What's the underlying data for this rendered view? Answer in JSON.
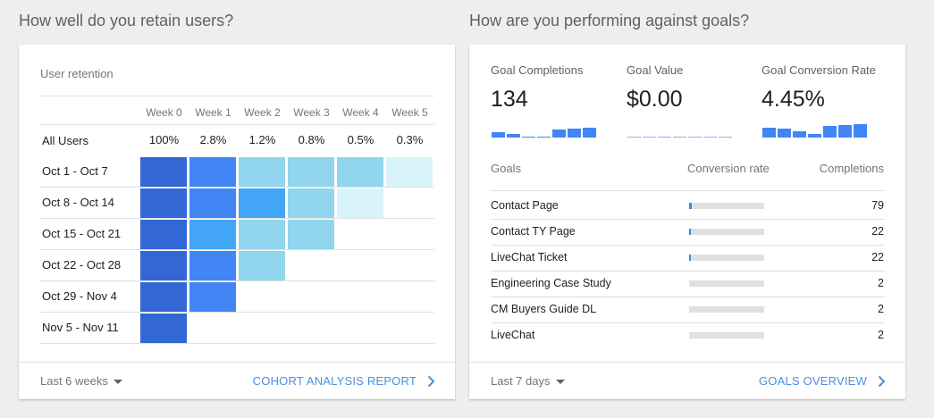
{
  "retention": {
    "section_title": "How well do you retain users?",
    "card_title": "User retention",
    "weeks": [
      "Week 0",
      "Week 1",
      "Week 2",
      "Week 3",
      "Week 4",
      "Week 5"
    ],
    "all_users": {
      "label": "All Users",
      "values": [
        "100%",
        "2.8%",
        "1.2%",
        "0.8%",
        "0.5%",
        "0.3%"
      ]
    },
    "cohorts": [
      {
        "label": "Oct 1 - Oct 7",
        "cells": 6
      },
      {
        "label": "Oct 8 - Oct 14",
        "cells": 5
      },
      {
        "label": "Oct 15 - Oct 21",
        "cells": 4
      },
      {
        "label": "Oct 22 - Oct 28",
        "cells": 3
      },
      {
        "label": "Oct 29 - Nov 4",
        "cells": 2
      },
      {
        "label": "Nov 5 - Nov 11",
        "cells": 1
      }
    ],
    "heat_colors": [
      [
        "#3367d6",
        "#4285f4",
        "#91d5ee",
        "#91d5ee",
        "#91d5ee",
        "#d9f3fa"
      ],
      [
        "#3367d6",
        "#4285f4",
        "#42a5f5",
        "#91d5ee",
        "#d9f3fa"
      ],
      [
        "#3367d6",
        "#42a5f5",
        "#91d5ee",
        "#91d5ee"
      ],
      [
        "#3367d6",
        "#4285f4",
        "#91d5ee"
      ],
      [
        "#3367d6",
        "#4285f4"
      ],
      [
        "#3367d6"
      ]
    ],
    "footer_range": "Last 6 weeks",
    "footer_link": "COHORT ANALYSIS REPORT"
  },
  "goals": {
    "section_title": "How are you performing against goals?",
    "metrics": [
      {
        "label": "Goal Completions",
        "value": "134",
        "spark": [
          0.45,
          0.25,
          0.08,
          0.1,
          0.65,
          0.7,
          0.8
        ]
      },
      {
        "label": "Goal Value",
        "value": "$0.00",
        "spark": [
          0,
          0,
          0,
          0,
          0,
          0,
          0
        ]
      },
      {
        "label": "Goal Conversion Rate",
        "value": "4.45%",
        "spark": [
          0.75,
          0.7,
          0.5,
          0.3,
          0.95,
          1.0,
          1.05
        ]
      }
    ],
    "columns": {
      "goal": "Goals",
      "rate": "Conversion rate",
      "completions": "Completions"
    },
    "rows": [
      {
        "name": "Contact Page",
        "rate": 0.03,
        "completions": "79"
      },
      {
        "name": "Contact TY Page",
        "rate": 0.02,
        "completions": "22"
      },
      {
        "name": "LiveChat Ticket",
        "rate": 0.02,
        "completions": "22"
      },
      {
        "name": "Engineering Case Study",
        "rate": 0,
        "completions": "2"
      },
      {
        "name": "CM Buyers Guide DL",
        "rate": 0,
        "completions": "2"
      },
      {
        "name": "LiveChat",
        "rate": 0,
        "completions": "2"
      }
    ],
    "footer_range": "Last 7 days",
    "footer_link": "GOALS OVERVIEW"
  },
  "colors": {
    "accent": "#4285f4",
    "link": "#4a90d9"
  },
  "icons": {
    "dropdown": "caret-down-icon",
    "link": "chevron-right-icon"
  }
}
